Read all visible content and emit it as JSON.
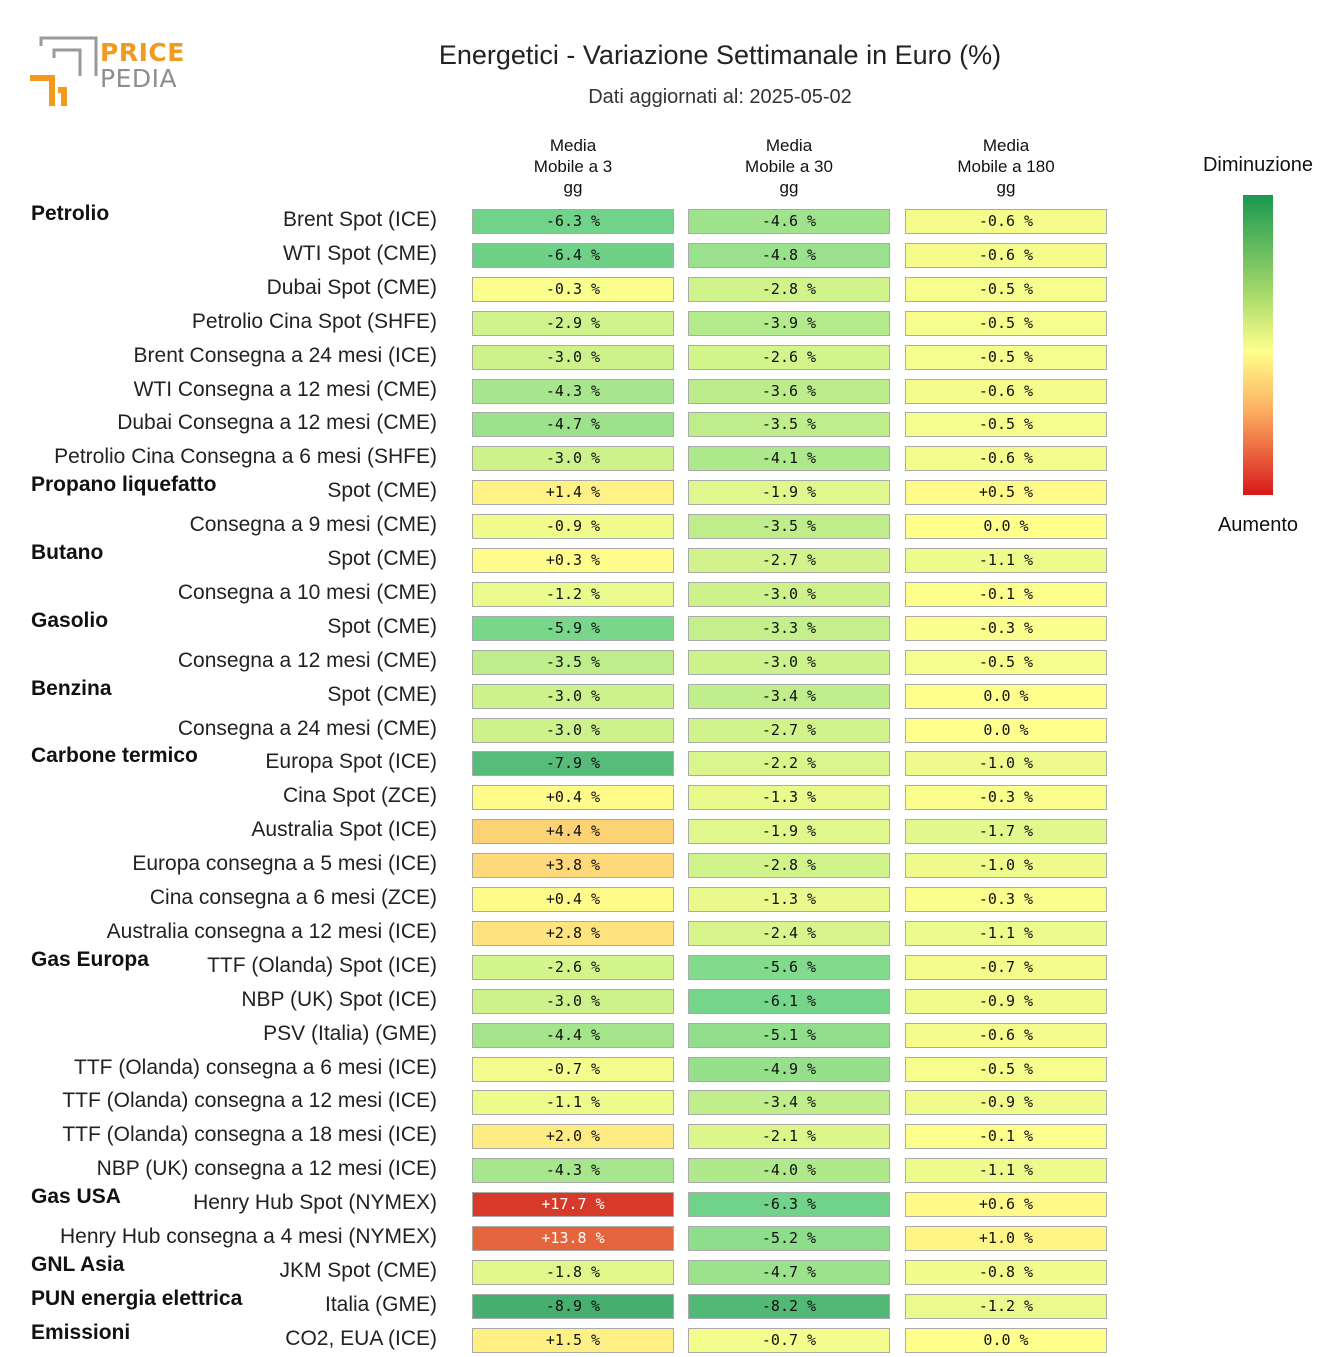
{
  "brand": {
    "line1": "PRICE",
    "line2": "PEDIA"
  },
  "chart_data": {
    "type": "table",
    "title": "Energetici - Variazione Settimanale in Euro (%)",
    "subtitle": "Dati aggiornati al: 2025-05-02",
    "columns": [
      "Media\nMobile a 3\ngg",
      "Media\nMobile a 30\ngg",
      "Media\nMobile a 180\ngg"
    ],
    "legend": {
      "top": "Diminuzione",
      "bottom": "Aumento"
    },
    "unit": "%",
    "rows": [
      {
        "group": "Petrolio",
        "label": "Brent Spot (ICE)",
        "values": [
          -6.3,
          -4.6,
          -0.6
        ],
        "text": [
          "-6.3 %",
          "-4.6 %",
          "-0.6 %"
        ]
      },
      {
        "group": "",
        "label": "WTI Spot (CME)",
        "values": [
          -6.4,
          -4.8,
          -0.6
        ],
        "text": [
          "-6.4 %",
          "-4.8 %",
          "-0.6 %"
        ]
      },
      {
        "group": "",
        "label": "Dubai Spot (CME)",
        "values": [
          -0.3,
          -2.8,
          -0.5
        ],
        "text": [
          "-0.3 %",
          "-2.8 %",
          "-0.5 %"
        ]
      },
      {
        "group": "",
        "label": "Petrolio Cina Spot (SHFE)",
        "values": [
          -2.9,
          -3.9,
          -0.5
        ],
        "text": [
          "-2.9 %",
          "-3.9 %",
          "-0.5 %"
        ]
      },
      {
        "group": "",
        "label": "Brent Consegna a 24 mesi (ICE)",
        "values": [
          -3.0,
          -2.6,
          -0.5
        ],
        "text": [
          "-3.0 %",
          "-2.6 %",
          "-0.5 %"
        ]
      },
      {
        "group": "",
        "label": "WTI Consegna a 12 mesi (CME)",
        "values": [
          -4.3,
          -3.6,
          -0.6
        ],
        "text": [
          "-4.3 %",
          "-3.6 %",
          "-0.6 %"
        ]
      },
      {
        "group": "",
        "label": "Dubai Consegna a 12 mesi (CME)",
        "values": [
          -4.7,
          -3.5,
          -0.5
        ],
        "text": [
          "-4.7 %",
          "-3.5 %",
          "-0.5 %"
        ]
      },
      {
        "group": "",
        "label": "Petrolio Cina Consegna a 6 mesi (SHFE)",
        "values": [
          -3.0,
          -4.1,
          -0.6
        ],
        "text": [
          "-3.0 %",
          "-4.1 %",
          "-0.6 %"
        ]
      },
      {
        "group": "Propano liquefatto",
        "label": "Spot (CME)",
        "values": [
          1.4,
          -1.9,
          0.5
        ],
        "text": [
          "+1.4 %",
          "-1.9 %",
          "+0.5 %"
        ]
      },
      {
        "group": "",
        "label": "Consegna a 9 mesi (CME)",
        "values": [
          -0.9,
          -3.5,
          0.0
        ],
        "text": [
          "-0.9 %",
          "-3.5 %",
          "0.0 %"
        ]
      },
      {
        "group": "Butano",
        "label": "Spot (CME)",
        "values": [
          0.3,
          -2.7,
          -1.1
        ],
        "text": [
          "+0.3 %",
          "-2.7 %",
          "-1.1 %"
        ]
      },
      {
        "group": "",
        "label": "Consegna a 10 mesi (CME)",
        "values": [
          -1.2,
          -3.0,
          -0.1
        ],
        "text": [
          "-1.2 %",
          "-3.0 %",
          "-0.1 %"
        ]
      },
      {
        "group": "Gasolio",
        "label": "Spot (CME)",
        "values": [
          -5.9,
          -3.3,
          -0.3
        ],
        "text": [
          "-5.9 %",
          "-3.3 %",
          "-0.3 %"
        ]
      },
      {
        "group": "",
        "label": "Consegna a 12 mesi (CME)",
        "values": [
          -3.5,
          -3.0,
          -0.5
        ],
        "text": [
          "-3.5 %",
          "-3.0 %",
          "-0.5 %"
        ]
      },
      {
        "group": "Benzina",
        "label": "Spot (CME)",
        "values": [
          -3.0,
          -3.4,
          0.0
        ],
        "text": [
          "-3.0 %",
          "-3.4 %",
          "0.0 %"
        ]
      },
      {
        "group": "",
        "label": "Consegna a 24 mesi (CME)",
        "values": [
          -3.0,
          -2.7,
          0.0
        ],
        "text": [
          "-3.0 %",
          "-2.7 %",
          "0.0 %"
        ]
      },
      {
        "group": "Carbone termico",
        "label": "Europa Spot (ICE)",
        "values": [
          -7.9,
          -2.2,
          -1.0
        ],
        "text": [
          "-7.9 %",
          "-2.2 %",
          "-1.0 %"
        ]
      },
      {
        "group": "",
        "label": "Cina Spot (ZCE)",
        "values": [
          0.4,
          -1.3,
          -0.3
        ],
        "text": [
          "+0.4 %",
          "-1.3 %",
          "-0.3 %"
        ]
      },
      {
        "group": "",
        "label": "Australia Spot (ICE)",
        "values": [
          4.4,
          -1.9,
          -1.7
        ],
        "text": [
          "+4.4 %",
          "-1.9 %",
          "-1.7 %"
        ]
      },
      {
        "group": "",
        "label": "Europa consegna a 5 mesi (ICE)",
        "values": [
          3.8,
          -2.8,
          -1.0
        ],
        "text": [
          "+3.8 %",
          "-2.8 %",
          "-1.0 %"
        ]
      },
      {
        "group": "",
        "label": "Cina consegna a 6 mesi (ZCE)",
        "values": [
          0.4,
          -1.3,
          -0.3
        ],
        "text": [
          "+0.4 %",
          "-1.3 %",
          "-0.3 %"
        ]
      },
      {
        "group": "",
        "label": "Australia consegna a 12 mesi (ICE)",
        "values": [
          2.8,
          -2.4,
          -1.1
        ],
        "text": [
          "+2.8 %",
          "-2.4 %",
          "-1.1 %"
        ]
      },
      {
        "group": "Gas Europa",
        "label": "TTF (Olanda) Spot (ICE)",
        "values": [
          -2.6,
          -5.6,
          -0.7
        ],
        "text": [
          "-2.6 %",
          "-5.6 %",
          "-0.7 %"
        ]
      },
      {
        "group": "",
        "label": "NBP (UK) Spot (ICE)",
        "values": [
          -3.0,
          -6.1,
          -0.9
        ],
        "text": [
          "-3.0 %",
          "-6.1 %",
          "-0.9 %"
        ]
      },
      {
        "group": "",
        "label": "PSV (Italia) (GME)",
        "values": [
          -4.4,
          -5.1,
          -0.6
        ],
        "text": [
          "-4.4 %",
          "-5.1 %",
          "-0.6 %"
        ]
      },
      {
        "group": "",
        "label": "TTF (Olanda) consegna a 6 mesi (ICE)",
        "values": [
          -0.7,
          -4.9,
          -0.5
        ],
        "text": [
          "-0.7 %",
          "-4.9 %",
          "-0.5 %"
        ]
      },
      {
        "group": "",
        "label": "TTF (Olanda) consegna a 12 mesi (ICE)",
        "values": [
          -1.1,
          -3.4,
          -0.9
        ],
        "text": [
          "-1.1 %",
          "-3.4 %",
          "-0.9 %"
        ]
      },
      {
        "group": "",
        "label": "TTF (Olanda) consegna a 18 mesi (ICE)",
        "values": [
          2.0,
          -2.1,
          -0.1
        ],
        "text": [
          "+2.0 %",
          "-2.1 %",
          "-0.1 %"
        ]
      },
      {
        "group": "",
        "label": "NBP (UK) consegna a 12 mesi (ICE)",
        "values": [
          -4.3,
          -4.0,
          -1.1
        ],
        "text": [
          "-4.3 %",
          "-4.0 %",
          "-1.1 %"
        ]
      },
      {
        "group": "Gas USA",
        "label": "Henry Hub Spot (NYMEX)",
        "values": [
          17.7,
          -6.3,
          0.6
        ],
        "text": [
          "+17.7 %",
          "-6.3 %",
          "+0.6 %"
        ]
      },
      {
        "group": "",
        "label": "Henry Hub consegna a 4 mesi (NYMEX)",
        "values": [
          13.8,
          -5.2,
          1.0
        ],
        "text": [
          "+13.8 %",
          "-5.2 %",
          "+1.0 %"
        ]
      },
      {
        "group": "GNL Asia",
        "label": "JKM Spot (CME)",
        "values": [
          -1.8,
          -4.7,
          -0.8
        ],
        "text": [
          "-1.8 %",
          "-4.7 %",
          "-0.8 %"
        ]
      },
      {
        "group": "PUN energia elettrica",
        "label": "Italia (GME)",
        "values": [
          -8.9,
          -8.2,
          -1.2
        ],
        "text": [
          "-8.9 %",
          "-8.2 %",
          "-1.2 %"
        ]
      },
      {
        "group": "Emissioni",
        "label": "CO2, EUA (ICE)",
        "values": [
          1.5,
          -0.7,
          0.0
        ],
        "text": [
          "+1.5 %",
          "-0.7 %",
          "0.0 %"
        ]
      }
    ]
  }
}
